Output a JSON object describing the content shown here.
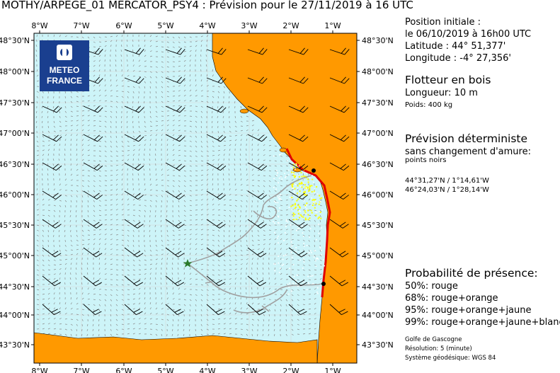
{
  "title": "MOTHY/ARPEGE_01 MERCATOR_PSY4    : Prévision pour le 27/11/2019 à 16 UTC",
  "axes": {
    "lon_labels": [
      "8°W",
      "7°W",
      "6°W",
      "5°W",
      "4°W",
      "3°W",
      "2°W",
      "1°W"
    ],
    "lat_labels": [
      "48°30'N",
      "48°00'N",
      "47°30'N",
      "47°00'N",
      "46°30'N",
      "46°00'N",
      "45°30'N",
      "45°00'N",
      "44°30'N",
      "44°00'N",
      "43°30'N"
    ]
  },
  "logo": {
    "line1": "METEO",
    "line2": "FRANCE"
  },
  "initial": {
    "heading": "Position initiale :",
    "date": "le 06/10/2019 à 16h00 UTC",
    "latitude": "Latitude : 44° 51,377'",
    "longitude": "Longitude : -4° 27,356'"
  },
  "float": {
    "name": "Flotteur en bois",
    "length": "Longueur: 10 m",
    "weight": "Poids: 400 kg"
  },
  "forecast": {
    "heading": "Prévision déterministe",
    "sub1": "sans changement d'amure:",
    "sub2": "points noirs",
    "point1": "44°31,27'N / 1°14,61'W",
    "point2": "46°24,03'N / 1°28,14'W"
  },
  "probability": {
    "heading": "Probabilité de présence:",
    "items": [
      "50%: rouge",
      "68%: rouge+orange",
      "95%: rouge+orange+jaune",
      "99%: rouge+orange+jaune+blanc"
    ]
  },
  "footer": {
    "region": "Golfe de Gascogne",
    "resolution": "Résolution: 5 (minute)",
    "geodetic": "Système géodésique: WGS 84"
  },
  "colors": {
    "sea": "#cdf4f8",
    "land": "#ff9900",
    "red": "#e00000",
    "yellow": "#ffff00",
    "track": "#a0a0a0",
    "logo": "#1a3f8f"
  }
}
